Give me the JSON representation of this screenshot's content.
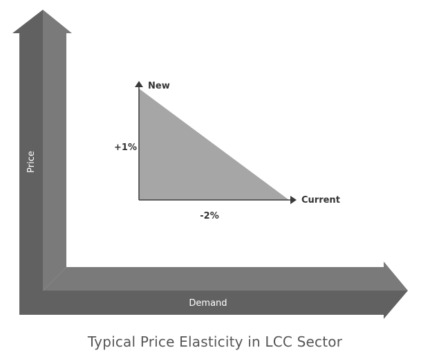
{
  "caption": "Typical Price Elasticity in LCC Sector",
  "axes": {
    "y_label": "Price",
    "x_label": "Demand"
  },
  "triangle": {
    "new_label": "New",
    "current_label": "Current",
    "price_change": "+1%",
    "demand_change": "-2%"
  },
  "colors": {
    "axis_dark": "#616161",
    "axis_light": "#7a7a7a",
    "triangle_fill": "#a6a6a6",
    "triangle_line": "#3a3a3a"
  }
}
